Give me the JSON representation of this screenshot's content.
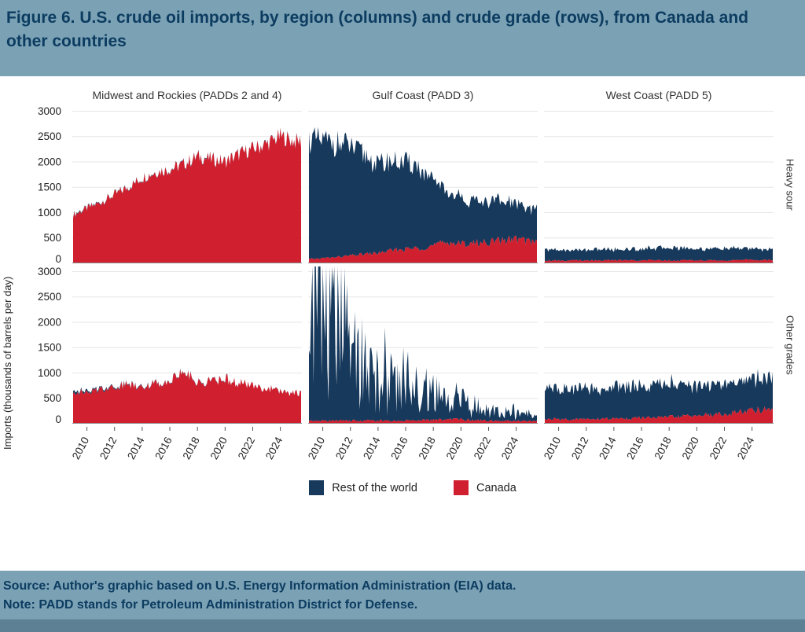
{
  "header": {
    "title": "Figure 6. U.S. crude oil imports, by region (columns) and crude grade (rows), from Canada and other countries"
  },
  "footer": {
    "source": "Source: Author's graphic based on U.S. Energy Information Administration (EIA) data.",
    "note": "Note: PADD stands for Petroleum Administration District for Defense."
  },
  "colors": {
    "canada": "#d0202f",
    "rest_of_world": "#17395c",
    "band": "#7ba1b5",
    "band_dark": "#5e8094",
    "title_text": "#0c3c60",
    "grid": "#e6e6e6",
    "axis": "#8a8a8a"
  },
  "chart_data": {
    "type": "area",
    "stacked": true,
    "title": "U.S. crude oil imports by region and crude grade",
    "ylabel": "Imports (thousands of barrels per day)",
    "years": [
      2009,
      2010,
      2011,
      2012,
      2013,
      2014,
      2015,
      2016,
      2017,
      2018,
      2019,
      2020,
      2021,
      2022,
      2023,
      2024,
      2025
    ],
    "x_range": [
      2009,
      2025.5
    ],
    "xticks": [
      2010,
      2012,
      2014,
      2016,
      2018,
      2020,
      2022,
      2024
    ],
    "ylim": [
      0,
      3100
    ],
    "yticks": [
      0,
      500,
      1000,
      1500,
      2000,
      2500,
      3000
    ],
    "col_titles": [
      "Midwest and Rockies (PADDs 2 and 4)",
      "Gulf Coast (PADD 3)",
      "West Coast (PADD 5)"
    ],
    "row_titles": [
      "Heavy sour",
      "Other grades"
    ],
    "legend": [
      {
        "label": "Rest of the world",
        "color_key": "rest_of_world"
      },
      {
        "label": "Canada",
        "color_key": "canada"
      }
    ],
    "panels": [
      {
        "row": 0,
        "col": 0,
        "region": "Midwest and Rockies (PADDs 2 and 4)",
        "grade": "Heavy sour",
        "canada": [
          950,
          1080,
          1200,
          1350,
          1500,
          1680,
          1800,
          1850,
          1950,
          2100,
          2050,
          2000,
          2150,
          2250,
          2350,
          2500,
          2400
        ],
        "rest_of_world": [
          15,
          15,
          10,
          10,
          10,
          10,
          10,
          10,
          10,
          10,
          10,
          10,
          10,
          10,
          10,
          10,
          10
        ],
        "jitter_canada": 0.07,
        "jitter_row": 0.5
      },
      {
        "row": 0,
        "col": 1,
        "region": "Gulf Coast (PADD 3)",
        "grade": "Heavy sour",
        "canada": [
          80,
          100,
          120,
          150,
          180,
          200,
          250,
          280,
          300,
          350,
          420,
          380,
          400,
          420,
          450,
          480,
          430
        ],
        "rest_of_world": [
          2350,
          2300,
          2250,
          2150,
          1950,
          1750,
          1750,
          1700,
          1600,
          1250,
          1000,
          900,
          820,
          800,
          760,
          700,
          650
        ],
        "jitter_canada": 0.2,
        "jitter_row": 0.12
      },
      {
        "row": 0,
        "col": 2,
        "region": "West Coast (PADD 5)",
        "grade": "Heavy sour",
        "canada": [
          60,
          60,
          55,
          60,
          60,
          60,
          60,
          60,
          60,
          60,
          60,
          60,
          55,
          60,
          60,
          70,
          60
        ],
        "rest_of_world": [
          220,
          210,
          200,
          210,
          220,
          210,
          220,
          230,
          240,
          260,
          240,
          230,
          230,
          240,
          230,
          220,
          210
        ],
        "jitter_canada": 0.3,
        "jitter_row": 0.18
      },
      {
        "row": 1,
        "col": 0,
        "region": "Midwest and Rockies (PADDs 2 and 4)",
        "grade": "Other grades",
        "canada": [
          640,
          600,
          680,
          720,
          780,
          740,
          790,
          850,
          1050,
          800,
          840,
          880,
          800,
          740,
          700,
          640,
          600
        ],
        "rest_of_world": [
          40,
          30,
          25,
          20,
          15,
          15,
          10,
          10,
          10,
          10,
          8,
          8,
          5,
          5,
          5,
          5,
          5
        ],
        "jitter_canada": 0.12,
        "jitter_row": 0.5
      },
      {
        "row": 1,
        "col": 1,
        "region": "Gulf Coast (PADD 3)",
        "grade": "Other grades",
        "canada": [
          50,
          55,
          60,
          60,
          60,
          60,
          55,
          60,
          70,
          70,
          90,
          80,
          70,
          60,
          60,
          55,
          50
        ],
        "rest_of_world": [
          2750,
          2500,
          2100,
          1500,
          1000,
          750,
          700,
          800,
          600,
          520,
          320,
          380,
          220,
          260,
          160,
          140,
          90
        ],
        "jitter_canada": 0.4,
        "jitter_row": 0.85,
        "spike_row": 1.2
      },
      {
        "row": 1,
        "col": 2,
        "region": "West Coast (PADD 5)",
        "grade": "Other grades",
        "canada": [
          90,
          90,
          85,
          90,
          95,
          100,
          100,
          110,
          120,
          130,
          140,
          160,
          170,
          190,
          220,
          270,
          290
        ],
        "rest_of_world": [
          580,
          620,
          580,
          610,
          570,
          610,
          650,
          600,
          640,
          690,
          600,
          560,
          600,
          560,
          600,
          640,
          600
        ],
        "jitter_canada": 0.3,
        "jitter_row": 0.22
      }
    ]
  }
}
